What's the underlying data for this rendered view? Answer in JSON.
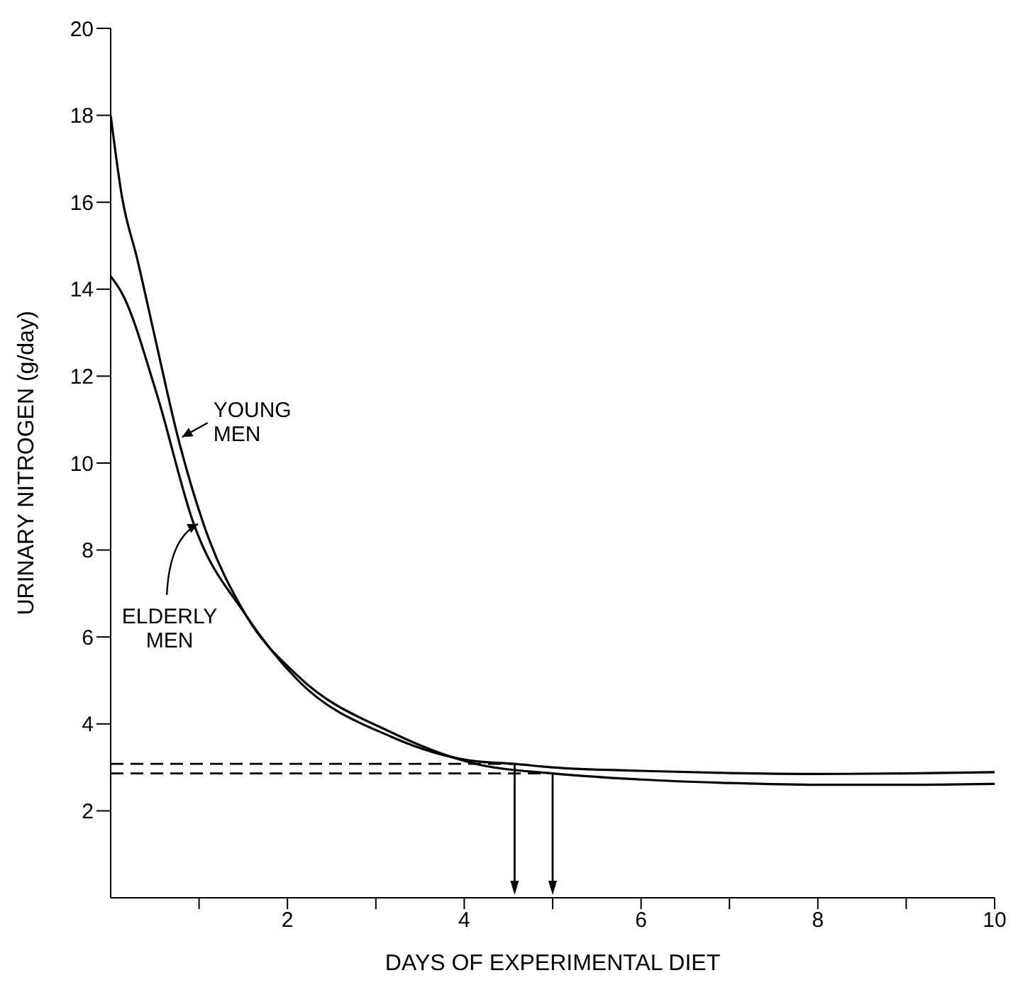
{
  "chart_data": {
    "type": "line",
    "xlabel": "DAYS OF EXPERIMENTAL DIET",
    "ylabel": "URINARY NITROGEN (g/day)",
    "xlim": [
      0,
      10
    ],
    "xticks": [
      {
        "value": 1,
        "label": null
      },
      2,
      {
        "value": 3,
        "label": null
      },
      4,
      {
        "value": 5,
        "label": null
      },
      6,
      {
        "value": 7,
        "label": null
      },
      8,
      {
        "value": 9,
        "label": null
      },
      10
    ],
    "ylim": [
      0,
      20
    ],
    "yticks": [
      2,
      4,
      6,
      8,
      10,
      12,
      14,
      16,
      18,
      20
    ],
    "marker": "none",
    "line_style": "solid",
    "series": [
      {
        "name": "YOUNG MEN",
        "color": "#000000",
        "x": [
          0,
          0.13,
          0.3,
          0.5,
          0.76,
          1.05,
          1.53,
          2.12,
          3.18,
          4.09,
          5,
          6,
          7,
          8,
          9,
          10
        ],
        "values": [
          18,
          16.1,
          14.7,
          12.9,
          10.6,
          8.6,
          6.5,
          5.1,
          3.8,
          3.1,
          2.86,
          2.72,
          2.64,
          2.6,
          2.6,
          2.62
        ]
      },
      {
        "name": "ELDERLY MEN",
        "color": "#000000",
        "x": [
          0,
          0.13,
          0.52,
          0.94,
          1.53,
          2.12,
          3.18,
          4.09,
          4.57,
          5,
          6,
          7,
          8,
          9,
          10
        ],
        "values": [
          14.3,
          13.9,
          11.6,
          8.6,
          6.5,
          5.0,
          3.7,
          3.15,
          3.08,
          3.0,
          2.92,
          2.87,
          2.85,
          2.86,
          2.89
        ]
      }
    ],
    "ref_lines": [
      {
        "axis": "y",
        "value": 3.08,
        "color": "#000000",
        "line_style": "dashed"
      },
      {
        "axis": "y",
        "value": 2.86,
        "color": "#000000",
        "line_style": "dashed"
      },
      {
        "axis": "x",
        "value": 4.57,
        "color": "#000000",
        "line_style": "solid"
      },
      {
        "axis": "x",
        "value": 5.0,
        "color": "#000000",
        "line_style": "solid"
      }
    ]
  }
}
